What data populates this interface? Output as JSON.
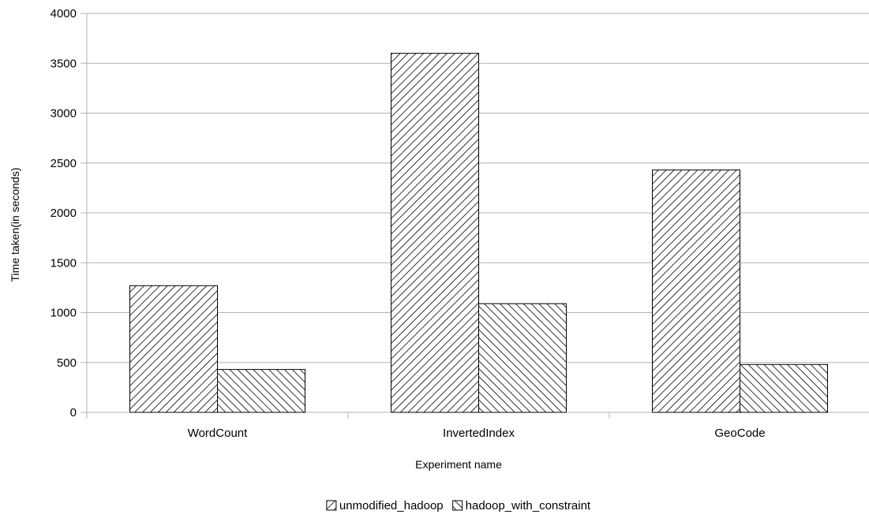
{
  "chart_data": {
    "type": "bar",
    "title": "",
    "xlabel": "Experiment name",
    "ylabel": "Time taken(in seconds)",
    "categories": [
      "WordCount",
      "InvertedIndex",
      "GeoCode"
    ],
    "series": [
      {
        "name": "unmodified_hadoop",
        "values": [
          1270,
          3600,
          2430
        ],
        "pattern": "hatch-forward"
      },
      {
        "name": "hadoop_with_constraint",
        "values": [
          430,
          1090,
          480
        ],
        "pattern": "hatch-backward"
      }
    ],
    "ylim": [
      0,
      4000
    ],
    "yticks": [
      0,
      500,
      1000,
      1500,
      2000,
      2500,
      3000,
      3500,
      4000
    ],
    "grid": true,
    "legend_position": "bottom-center",
    "colors": {
      "bar_fill": "#ffffff",
      "bar_stroke": "#000000",
      "hatch": "#000000",
      "grid": "#b3b3b3",
      "axis": "#b3b3b3"
    }
  }
}
